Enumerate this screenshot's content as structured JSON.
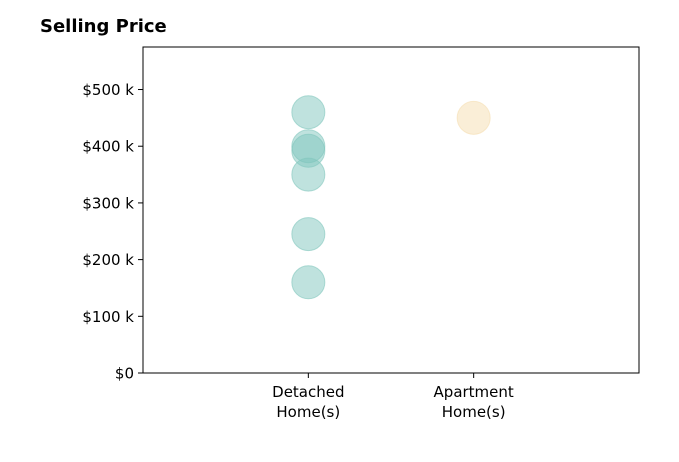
{
  "chart_data": {
    "type": "scatter",
    "title": "Selling Price",
    "xlabel": "",
    "ylabel": "",
    "categories": [
      {
        "key": "detached",
        "lines": [
          "Detached",
          "Home(s)"
        ]
      },
      {
        "key": "apartment",
        "lines": [
          "Apartment",
          "Home(s)"
        ]
      }
    ],
    "series": [
      {
        "category": "detached",
        "color": "#80c6bd",
        "values": [
          460000,
          400000,
          392000,
          350000,
          245000,
          160000
        ]
      },
      {
        "category": "apartment",
        "color": "#f5deb0",
        "values": [
          450000
        ]
      }
    ],
    "yticks": [
      {
        "value": 0,
        "label": "$0"
      },
      {
        "value": 100000,
        "label": "$100 k"
      },
      {
        "value": 200000,
        "label": "$200 k"
      },
      {
        "value": 300000,
        "label": "$300 k"
      },
      {
        "value": 400000,
        "label": "$400 k"
      },
      {
        "value": 500000,
        "label": "$500 k"
      }
    ],
    "ylim": [
      0,
      575000
    ],
    "xlim": [
      0,
      3
    ],
    "grid": false,
    "marker_alpha": 0.5
  }
}
